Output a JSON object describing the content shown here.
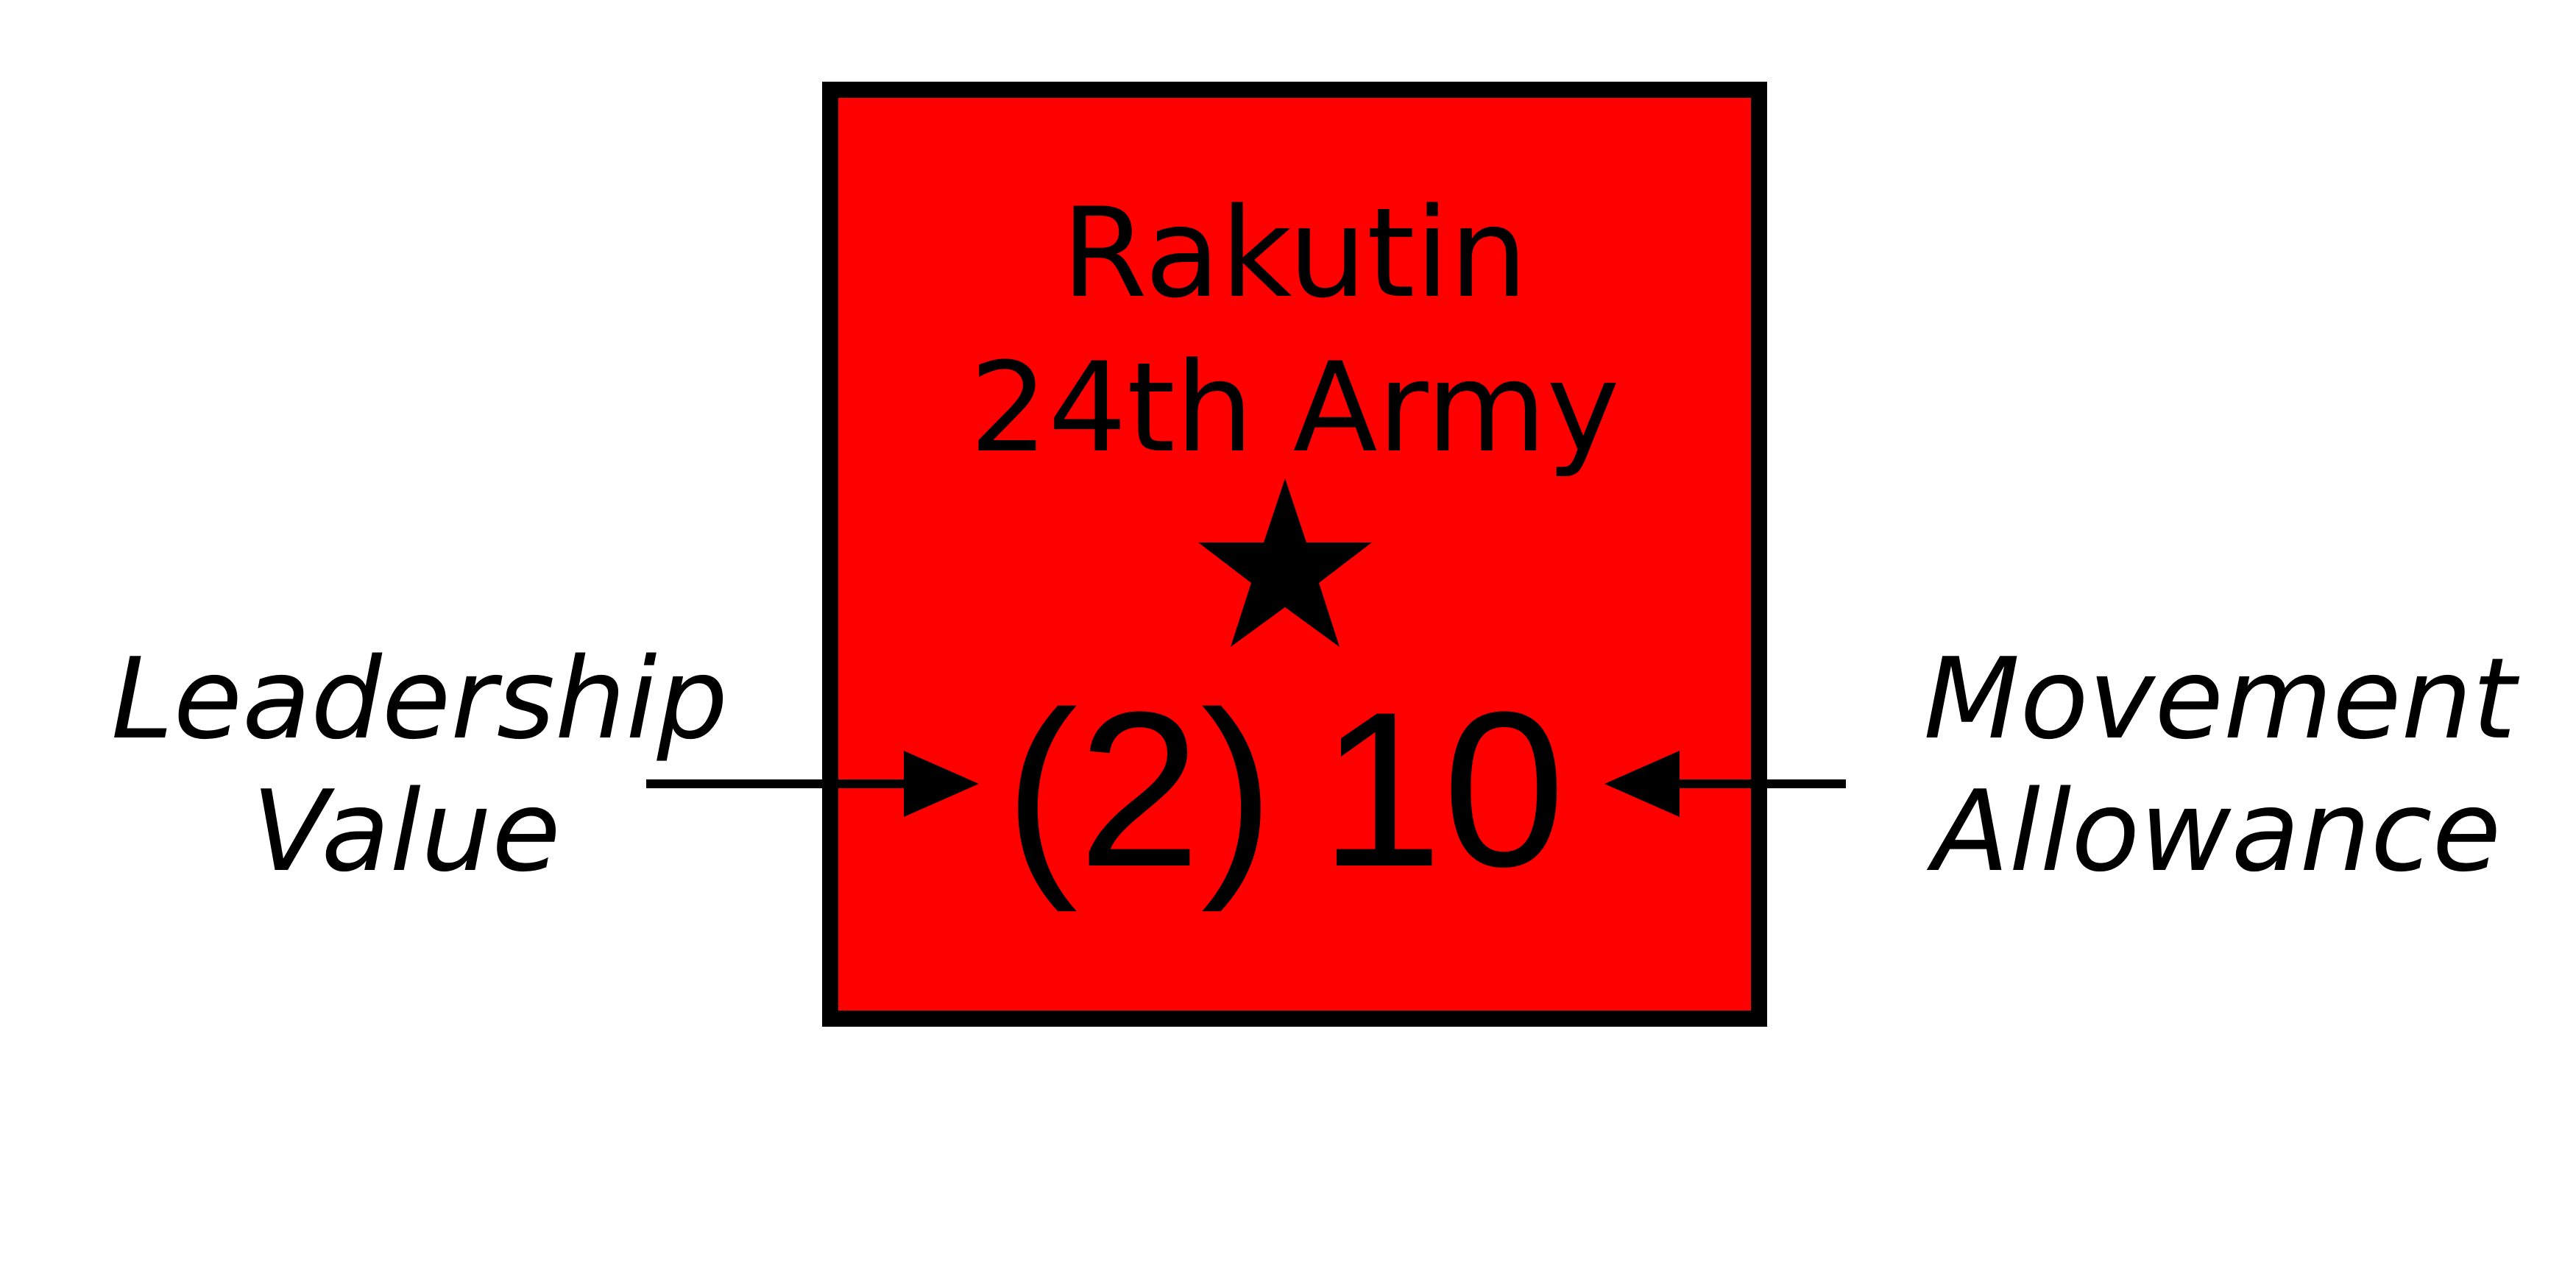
{
  "counter": {
    "name": "Rakutin",
    "unit": "24th Army",
    "leadership_value": "(2)",
    "movement_allowance": "10",
    "fill_color": "#ff0000",
    "border_color": "#000000",
    "rank_icon": "star-icon"
  },
  "labels": {
    "left_line1": "Leadership",
    "left_line2": "Value",
    "right_line1": "Movement",
    "right_line2": "Allowance"
  }
}
